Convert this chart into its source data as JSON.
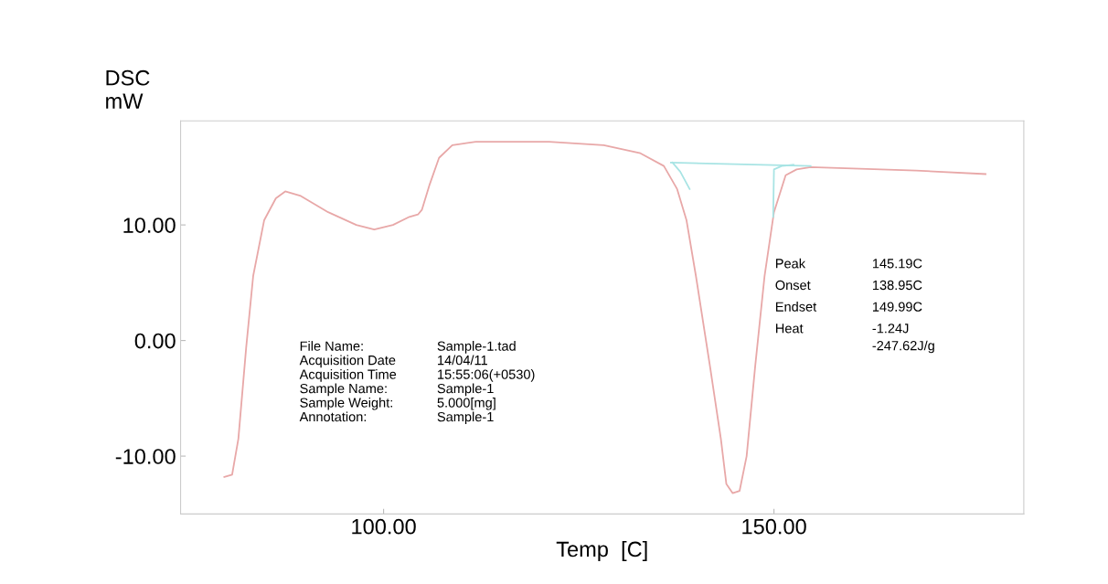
{
  "chart_data": {
    "type": "line",
    "xlabel": "Temp  [C]",
    "ylabel": "DSC\nmW",
    "xlim": [
      74,
      182
    ],
    "xticks": [
      {
        "value": 100,
        "label": "100.00"
      },
      {
        "value": 150,
        "label": "150.00"
      }
    ],
    "ylim": [
      -15,
      19
    ],
    "yticks": [
      {
        "value": -10,
        "label": "-10.00"
      },
      {
        "value": 0,
        "label": "0.00"
      },
      {
        "value": 10,
        "label": "10.00"
      }
    ],
    "grid": false,
    "marker": "none",
    "line_style": "solid",
    "series": [
      {
        "color": "#e8a8a8",
        "x": [
          79.6,
          80.6,
          81.4,
          82.4,
          83.3,
          84.7,
          86.2,
          87.4,
          89.4,
          92.9,
          96.5,
          98.8,
          101.2,
          103.3,
          104.4,
          104.9,
          105.9,
          107.1,
          108.8,
          111.8,
          121.2,
          128.2,
          132.9,
          135.9,
          137.6,
          138.8,
          140.0,
          141.8,
          143.2,
          143.9,
          144.7,
          145.6,
          146.5,
          147.6,
          148.8,
          150.0,
          151.5,
          152.9,
          154.7,
          168.2,
          177.1
        ],
        "values": [
          -11.8,
          -11.6,
          -8.5,
          -0.6,
          5.6,
          10.4,
          12.3,
          12.9,
          12.5,
          11.1,
          10.0,
          9.6,
          10.0,
          10.7,
          10.9,
          11.3,
          13.5,
          15.8,
          16.9,
          17.2,
          17.2,
          16.9,
          16.2,
          15.1,
          13.1,
          10.4,
          5.6,
          -2.2,
          -8.5,
          -12.4,
          -13.2,
          -13.0,
          -10.0,
          -2.2,
          5.6,
          11.1,
          14.3,
          14.8,
          15.0,
          14.7,
          14.4
        ]
      },
      {
        "color": "#a8e4e4",
        "x": [
          136.8,
          145.0,
          154.7
        ],
        "values": [
          15.4,
          15.25,
          15.1
        ]
      },
      {
        "color": "#a8e4e4",
        "x": [
          137.0,
          138.0,
          139.2
        ],
        "values": [
          15.4,
          14.6,
          13.1
        ]
      },
      {
        "color": "#a8e4e4",
        "x": [
          149.9,
          150.0,
          151.0,
          152.5
        ],
        "values": [
          10.7,
          14.8,
          15.1,
          15.2
        ]
      }
    ],
    "annotations": [
      "File Name:",
      "Sample-1.tad",
      "Acquisition Date",
      "14/04/11",
      "Acquisition Time",
      "15:55:06(+0530)",
      "Sample Name:",
      "Sample-1",
      "Sample Weight:",
      "5.000[mg]",
      "Annotation:",
      "Sample-1",
      "Peak",
      "145.19C",
      "Onset",
      "138.95C",
      "Endset",
      "149.99C",
      "Heat",
      "-1.24J\n-247.62J/g"
    ]
  }
}
